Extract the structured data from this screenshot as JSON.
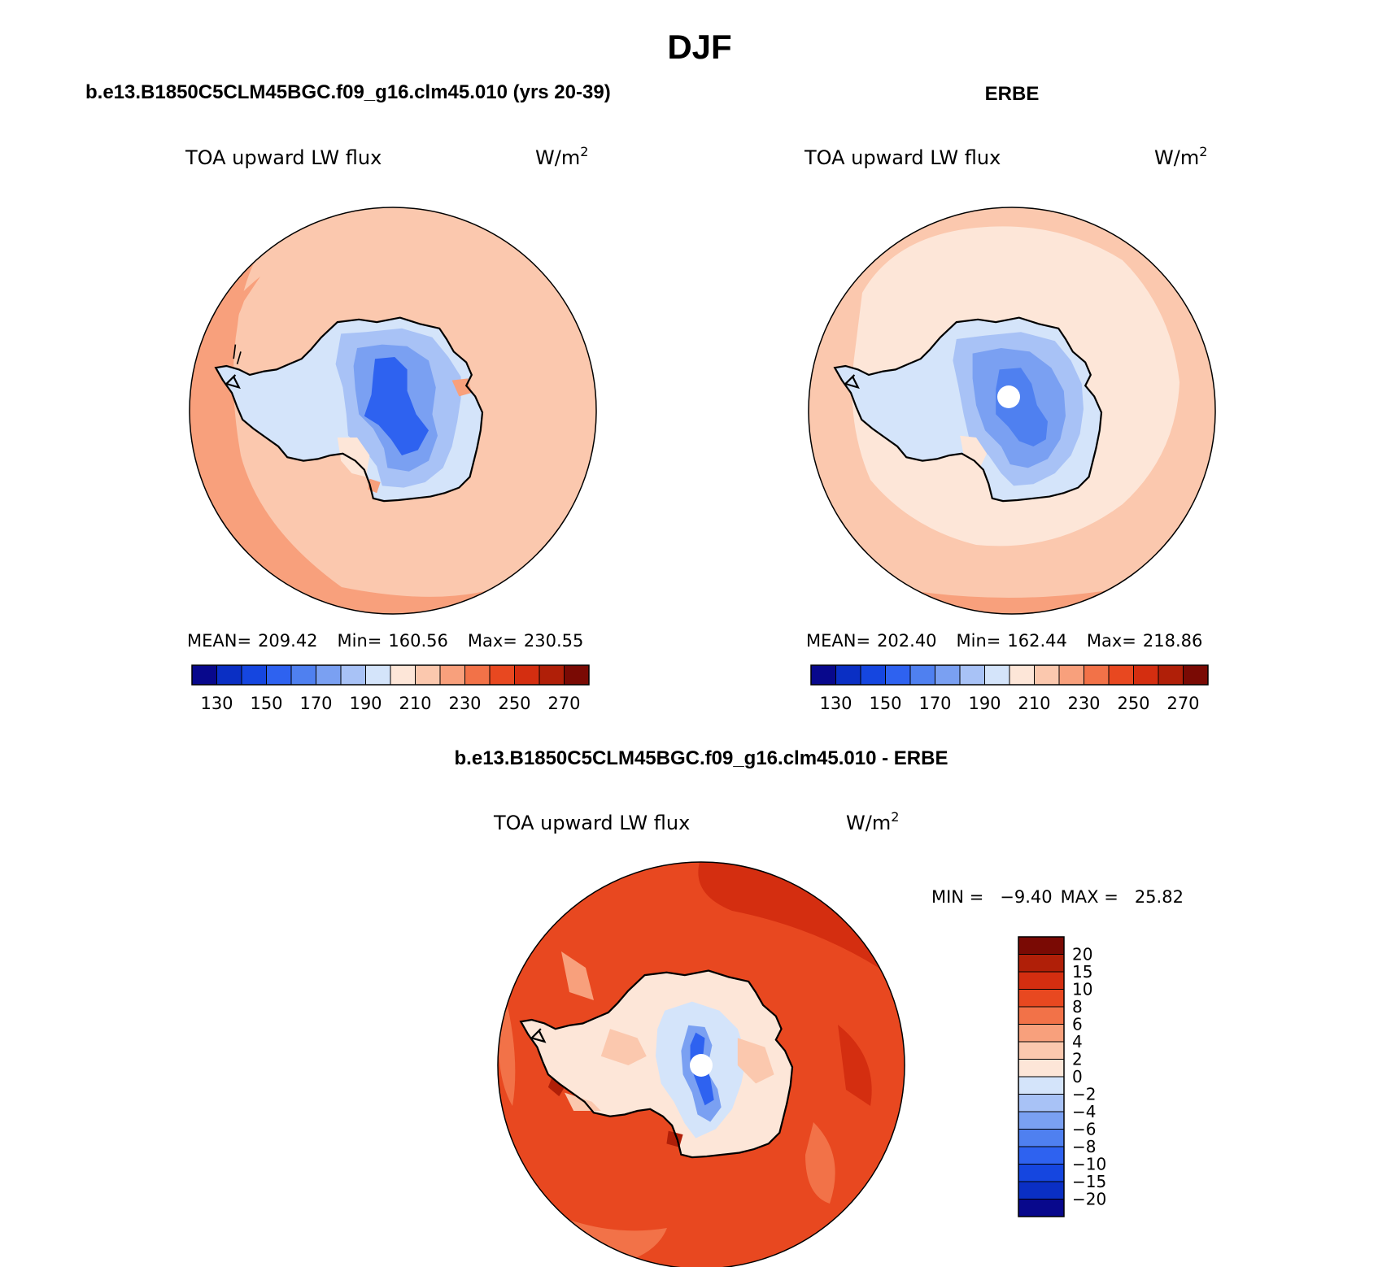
{
  "figure": {
    "season_title": "DJF",
    "bottom_title": "b.e13.B1850C5CLM45BGC.f09_g16.clm45.010 - ERBE"
  },
  "chart_data": [
    {
      "type": "heatmap",
      "title": "b.e13.B1850C5CLM45BGC.f09_g16.clm45.010 (yrs 20-39)",
      "variable": "TOA upward LW flux",
      "units": "W/m",
      "units_sup": "2",
      "projection": "south-polar-stereographic",
      "stats": {
        "mean_label": "MEAN=",
        "mean": "209.42",
        "min_label": "Min=",
        "min": "160.56",
        "max_label": "Max=",
        "max": "230.55"
      },
      "colorbar": {
        "orientation": "horizontal",
        "levels": [
          130,
          140,
          150,
          160,
          170,
          180,
          190,
          200,
          210,
          220,
          230,
          240,
          250,
          260,
          270
        ],
        "tick_labels": [
          "130",
          "150",
          "170",
          "190",
          "210",
          "230",
          "250",
          "270"
        ],
        "colors": [
          "#08088c",
          "#0a2fc4",
          "#1546e0",
          "#2e62f0",
          "#4f80f0",
          "#7aa0f2",
          "#a8c2f6",
          "#d4e4fa",
          "#fde6d8",
          "#fbc8ae",
          "#f8a07c",
          "#f27248",
          "#e84820",
          "#d42e10",
          "#b01f08",
          "#7a0a04"
        ]
      }
    },
    {
      "type": "heatmap",
      "title": "ERBE",
      "variable": "TOA upward LW flux",
      "units": "W/m",
      "units_sup": "2",
      "projection": "south-polar-stereographic",
      "stats": {
        "mean_label": "MEAN=",
        "mean": "202.40",
        "min_label": "Min=",
        "min": "162.44",
        "max_label": "Max=",
        "max": "218.86"
      },
      "colorbar": {
        "orientation": "horizontal",
        "levels": [
          130,
          140,
          150,
          160,
          170,
          180,
          190,
          200,
          210,
          220,
          230,
          240,
          250,
          260,
          270
        ],
        "tick_labels": [
          "130",
          "150",
          "170",
          "190",
          "210",
          "230",
          "250",
          "270"
        ],
        "colors": [
          "#08088c",
          "#0a2fc4",
          "#1546e0",
          "#2e62f0",
          "#4f80f0",
          "#7aa0f2",
          "#a8c2f6",
          "#d4e4fa",
          "#fde6d8",
          "#fbc8ae",
          "#f8a07c",
          "#f27248",
          "#e84820",
          "#d42e10",
          "#b01f08",
          "#7a0a04"
        ]
      }
    },
    {
      "type": "heatmap",
      "title": "",
      "variable": "TOA upward LW flux",
      "units": "W/m",
      "units_sup": "2",
      "projection": "south-polar-stereographic",
      "stats": {
        "min_label": "MIN =",
        "min": "−9.40",
        "max_label": "MAX =",
        "max": "25.82"
      },
      "colorbar": {
        "orientation": "vertical",
        "levels": [
          -20,
          -15,
          -10,
          -8,
          -6,
          -4,
          -2,
          0,
          2,
          4,
          6,
          8,
          10,
          15,
          20
        ],
        "tick_labels": [
          "20",
          "15",
          "10",
          "8",
          "6",
          "4",
          "2",
          "0",
          "−2",
          "−4",
          "−6",
          "−8",
          "−10",
          "−15",
          "−20"
        ],
        "colors_top_to_bottom": [
          "#7a0a04",
          "#b01f08",
          "#d42e10",
          "#e84820",
          "#f27248",
          "#f8a07c",
          "#fbc8ae",
          "#fde6d8",
          "#d4e4fa",
          "#a8c2f6",
          "#7aa0f2",
          "#4f80f0",
          "#2e62f0",
          "#1546e0",
          "#0a2fc4",
          "#08088c"
        ]
      }
    }
  ]
}
